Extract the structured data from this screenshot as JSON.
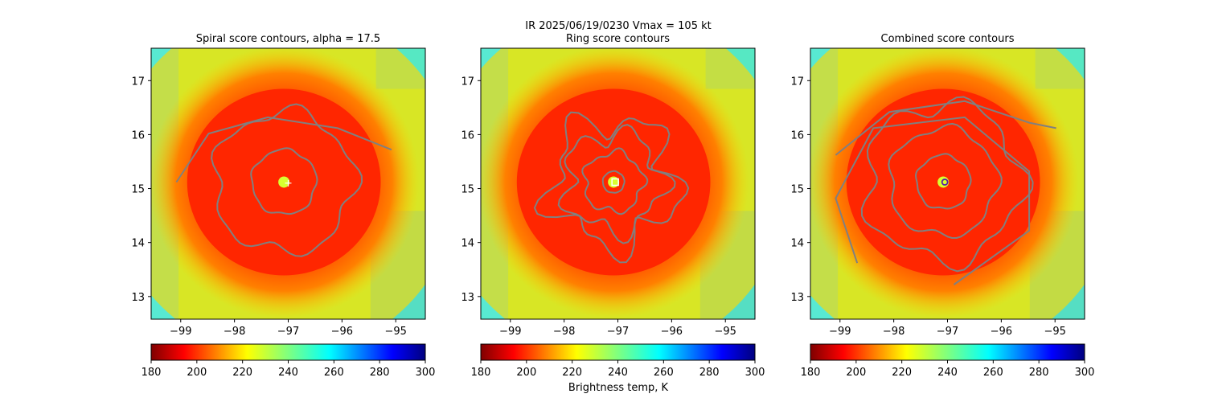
{
  "figure": {
    "suptitle": "IR  2025/06/19/0230    Vmax = 105 kt",
    "colorbar_label": "Brightness temp, K"
  },
  "chart_data": [
    {
      "type": "heatmap",
      "title": "Spiral score contours, alpha = 17.5",
      "xlim": [
        -99.55,
        -94.45
      ],
      "ylim": [
        12.58,
        17.6
      ],
      "xticks": [
        -99,
        -98,
        -97,
        -96,
        -95
      ],
      "yticks": [
        13,
        14,
        15,
        16,
        17
      ],
      "center": {
        "lon": -97.08,
        "lat": 15.12
      },
      "marker": {
        "type": "cross",
        "lon": -97.0,
        "lat": 15.1
      },
      "contours": "spiral",
      "colorbar": {
        "min": 180,
        "max": 300,
        "ticks": [
          180,
          200,
          220,
          240,
          260,
          280,
          300
        ],
        "cmap": "jet_r"
      }
    },
    {
      "type": "heatmap",
      "title": "Ring score contours",
      "xlim": [
        -99.55,
        -94.45
      ],
      "ylim": [
        12.58,
        17.6
      ],
      "xticks": [
        -99,
        -98,
        -97,
        -96,
        -95
      ],
      "yticks": [
        13,
        14,
        15,
        16,
        17
      ],
      "center": {
        "lon": -97.08,
        "lat": 15.12
      },
      "marker": {
        "type": "square",
        "lon": -97.05,
        "lat": 15.12
      },
      "contours": "ring",
      "colorbar": {
        "min": 180,
        "max": 300,
        "ticks": [
          180,
          200,
          220,
          240,
          260,
          280,
          300
        ],
        "cmap": "jet_r"
      }
    },
    {
      "type": "heatmap",
      "title": "Combined score contours",
      "xlim": [
        -99.55,
        -94.45
      ],
      "ylim": [
        12.58,
        17.6
      ],
      "xticks": [
        -99,
        -98,
        -97,
        -96,
        -95
      ],
      "yticks": [
        13,
        14,
        15,
        16,
        17
      ],
      "center": {
        "lon": -97.08,
        "lat": 15.12
      },
      "marker": {
        "type": "circle",
        "lon": -97.05,
        "lat": 15.12
      },
      "contours": "combined",
      "colorbar": {
        "min": 180,
        "max": 300,
        "ticks": [
          180,
          200,
          220,
          240,
          260,
          280,
          300
        ],
        "cmap": "jet_r"
      }
    }
  ]
}
